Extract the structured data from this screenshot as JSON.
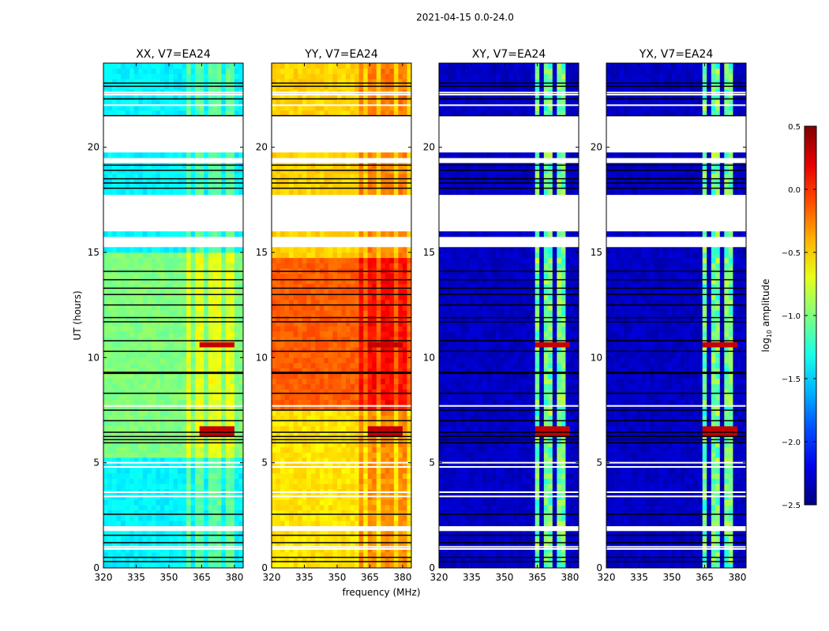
{
  "chart_data": {
    "type": "heatmap",
    "title": "2021-04-15 0.0-24.0",
    "xlabel": "frequency (MHz)",
    "ylabel": "UT (hours)",
    "xlim": [
      320,
      384
    ],
    "ylim": [
      0,
      24
    ],
    "xticks": [
      "320",
      "335",
      "350",
      "365",
      "380"
    ],
    "yticks": [
      "0",
      "5",
      "10",
      "15",
      "20"
    ],
    "colorbar": {
      "label_main": "log",
      "label_sub": "10",
      "label_rest": " amplitude",
      "range": [
        -2.5,
        0.5
      ],
      "colormap": "jet",
      "ticks": [
        "0.5",
        "0.0",
        "−0.5",
        "−1.0",
        "−1.5",
        "−2.0",
        "−2.5"
      ]
    },
    "gaps_hours": [
      [
        1.65,
        1.95
      ],
      [
        15.2,
        15.8
      ],
      [
        16.1,
        17.7
      ],
      [
        19.3,
        19.6
      ],
      [
        19.75,
        21.4
      ]
    ],
    "flag_lines_black_hours": [
      0.3,
      0.5,
      1.2,
      1.55,
      2.55,
      5.95,
      6.1,
      6.25,
      6.45,
      7.0,
      7.5,
      8.3,
      9.25,
      9.3,
      10.3,
      10.8,
      11.7,
      11.9,
      12.5,
      13.0,
      13.3,
      13.7,
      14.1,
      18.05,
      18.3,
      18.5,
      18.9,
      19.15,
      21.5,
      22.3,
      22.9,
      23.05
    ],
    "flag_lines_white_hours": [
      0.9,
      1.0,
      3.4,
      3.6,
      4.8,
      5.0,
      7.7,
      22.0,
      22.5,
      22.6
    ],
    "panels": [
      {
        "title": "XX, V7=EA24",
        "segments": [
          [
            0,
            5.3,
            -1.4
          ],
          [
            5.3,
            15,
            -1.0
          ],
          [
            15,
            24,
            -1.4
          ]
        ],
        "band_boost": 0.3,
        "band_range": [
          358,
          383
        ],
        "rfi_hours": [
          6.5,
          10.7
        ],
        "rfi_range": [
          363,
          380
        ]
      },
      {
        "title": "YY, V7=EA24",
        "segments": [
          [
            0,
            7.5,
            -0.55
          ],
          [
            7.5,
            14.7,
            -0.15
          ],
          [
            14.7,
            24,
            -0.5
          ]
        ],
        "band_boost": 0.25,
        "band_range": [
          360,
          382
        ],
        "rfi_hours": [
          6.5,
          10.7
        ],
        "rfi_range": [
          363,
          380
        ]
      },
      {
        "title": "XY, V7=EA24",
        "segments": [
          [
            0,
            24,
            -2.3
          ]
        ],
        "band_boost": 1.25,
        "band_range": [
          363,
          380
        ],
        "rfi_hours": [
          6.5,
          10.7
        ],
        "rfi_range": [
          363,
          380
        ]
      },
      {
        "title": "YX, V7=EA24",
        "segments": [
          [
            0,
            24,
            -2.3
          ]
        ],
        "band_boost": 1.25,
        "band_range": [
          363,
          380
        ],
        "rfi_hours": [
          6.5,
          10.7
        ],
        "rfi_range": [
          363,
          380
        ]
      }
    ]
  }
}
